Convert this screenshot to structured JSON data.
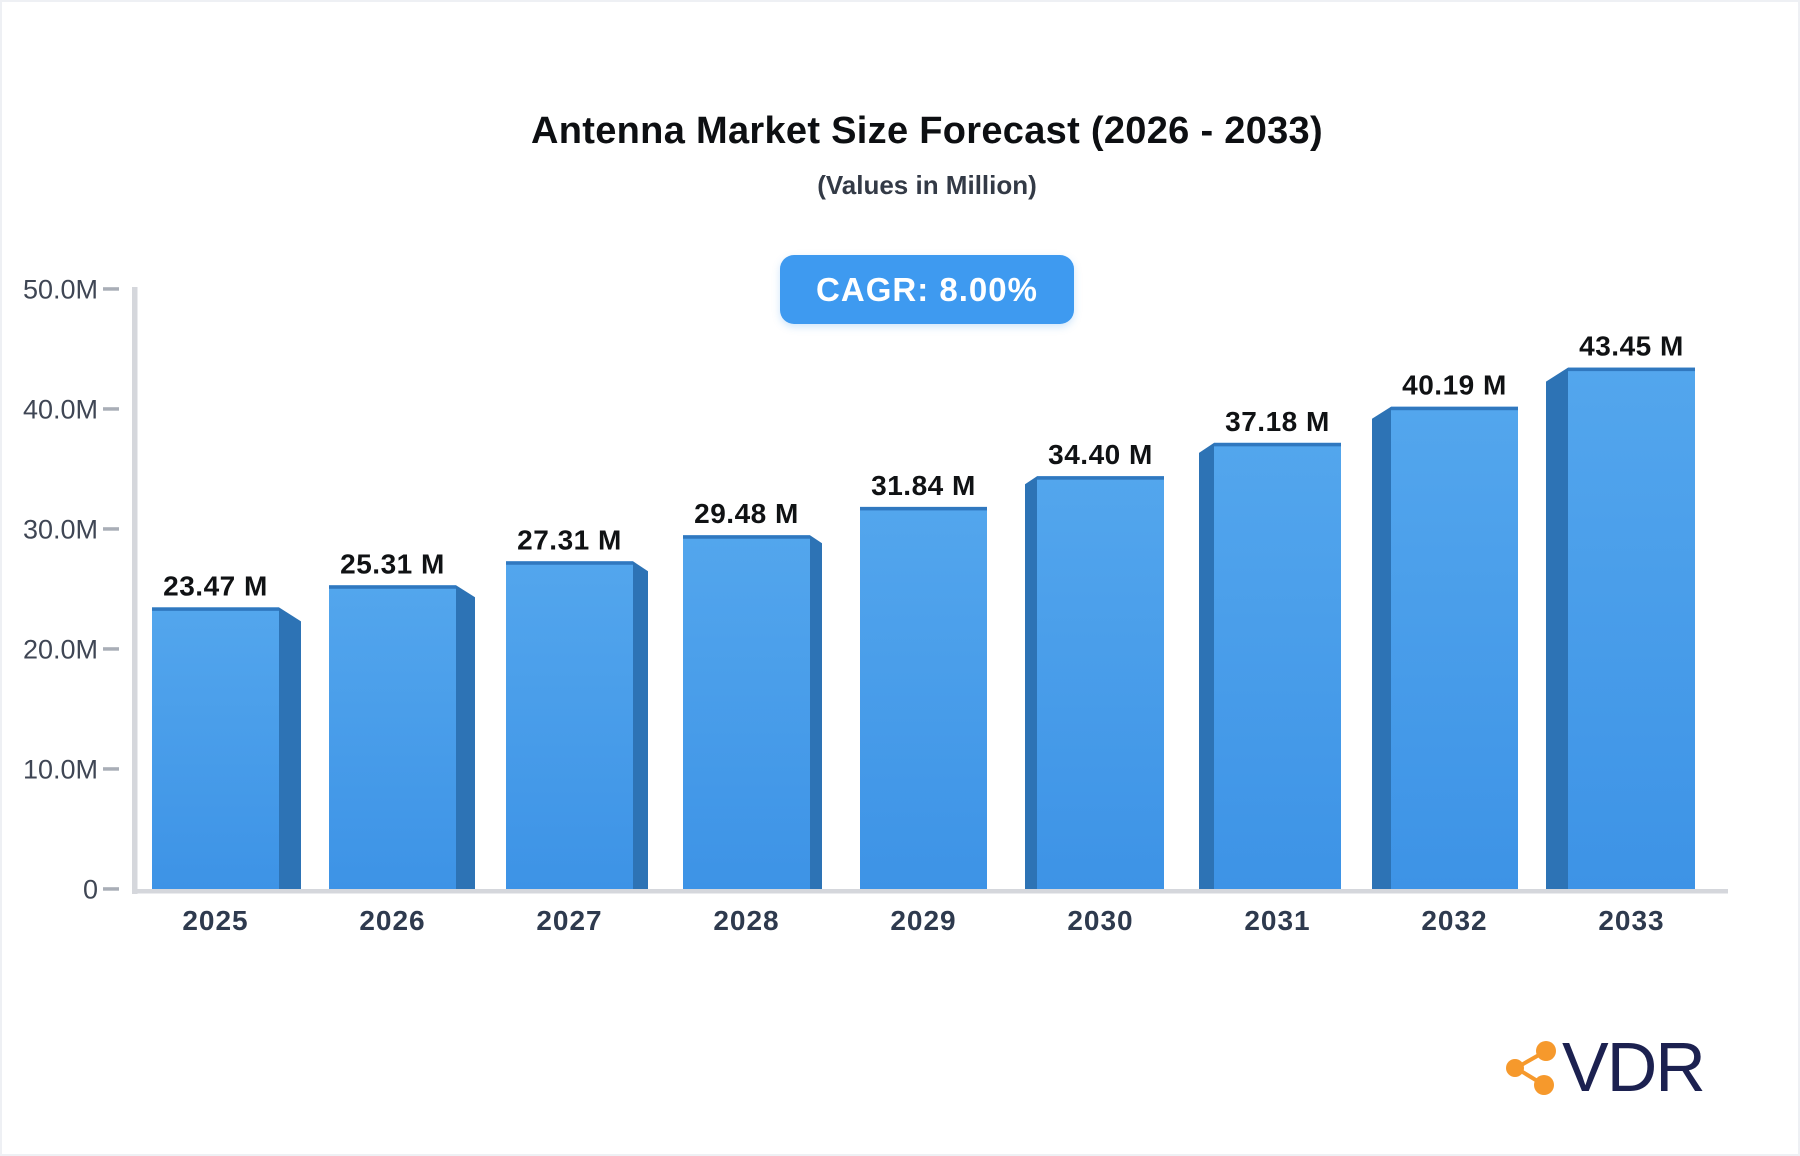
{
  "header": {
    "title": "Antenna Market Size Forecast (2026 - 2033)",
    "subtitle": "(Values in Million)",
    "cagr_badge": "CAGR: 8.00%"
  },
  "chart_data": {
    "type": "bar",
    "title": "Antenna Market Size Forecast (2026 - 2033)",
    "subtitle": "(Values in Million)",
    "annotation": "CAGR: 8.00%",
    "categories": [
      "2025",
      "2026",
      "2027",
      "2028",
      "2029",
      "2030",
      "2031",
      "2032",
      "2033"
    ],
    "values": [
      23.47,
      25.31,
      27.31,
      29.48,
      31.84,
      34.4,
      37.18,
      40.19,
      43.45
    ],
    "value_labels": [
      "23.47 M",
      "25.31 M",
      "27.31 M",
      "29.48 M",
      "31.84 M",
      "34.40 M",
      "37.18 M",
      "40.19 M",
      "43.45 M"
    ],
    "unit": "Million",
    "xlabel": "",
    "ylabel": "",
    "grid": false,
    "legend": false,
    "y_axis": {
      "range": [
        0,
        50
      ],
      "ticks": [
        {
          "label": "50.0M",
          "value": 50
        },
        {
          "label": "40.0M",
          "value": 40
        },
        {
          "label": "30.0M",
          "value": 30
        },
        {
          "label": "20.0M",
          "value": 20
        },
        {
          "label": "10.0M",
          "value": 10
        },
        {
          "label": "0",
          "value": 0
        }
      ]
    }
  },
  "colors": {
    "bar_front_top": "#53a6ed",
    "bar_front_bottom": "#3d93e6",
    "bar_side": "#2d73b5",
    "bar_top_edge": "#3078bf",
    "badge_bg": "#3e9af0",
    "badge_text": "#ffffff",
    "axis_line": "#d5d7dc",
    "tick_mark": "#a9aeb7",
    "y_label": "#3f4654",
    "x_label": "#2e3a4e",
    "value_label": "#101214",
    "title": "#0d0f12",
    "subtitle": "#333a46",
    "logo_text": "#1c2150",
    "logo_icon": "#f6992c"
  },
  "branding": {
    "logo_text": "VDR"
  }
}
